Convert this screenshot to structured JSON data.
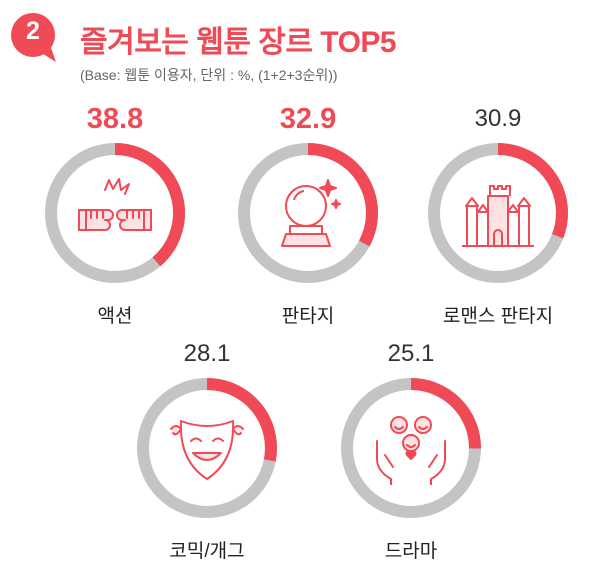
{
  "header": {
    "badge": "2",
    "title": "즐겨보는 웹툰 장르 TOP5",
    "subtitle": "(Base: 웹툰 이용자, 단위 : %, (1+2+3순위))"
  },
  "colors": {
    "accent": "#ef4a55",
    "track": "#c4c4c4"
  },
  "chart_data": {
    "type": "donut",
    "max": 100,
    "items": [
      {
        "category": "액션",
        "value": 38.8,
        "display": "38.8",
        "highlight": true,
        "icon": "fists-icon"
      },
      {
        "category": "판타지",
        "value": 32.9,
        "display": "32.9",
        "highlight": true,
        "icon": "crystal-ball-icon"
      },
      {
        "category": "로맨스 판타지",
        "value": 30.9,
        "display": "30.9",
        "highlight": false,
        "icon": "castle-icon"
      },
      {
        "category": "코믹/개그",
        "value": 28.1,
        "display": "28.1",
        "highlight": false,
        "icon": "smile-mask-icon"
      },
      {
        "category": "드라마",
        "value": 25.1,
        "display": "25.1",
        "highlight": false,
        "icon": "emotions-hands-icon"
      }
    ]
  }
}
